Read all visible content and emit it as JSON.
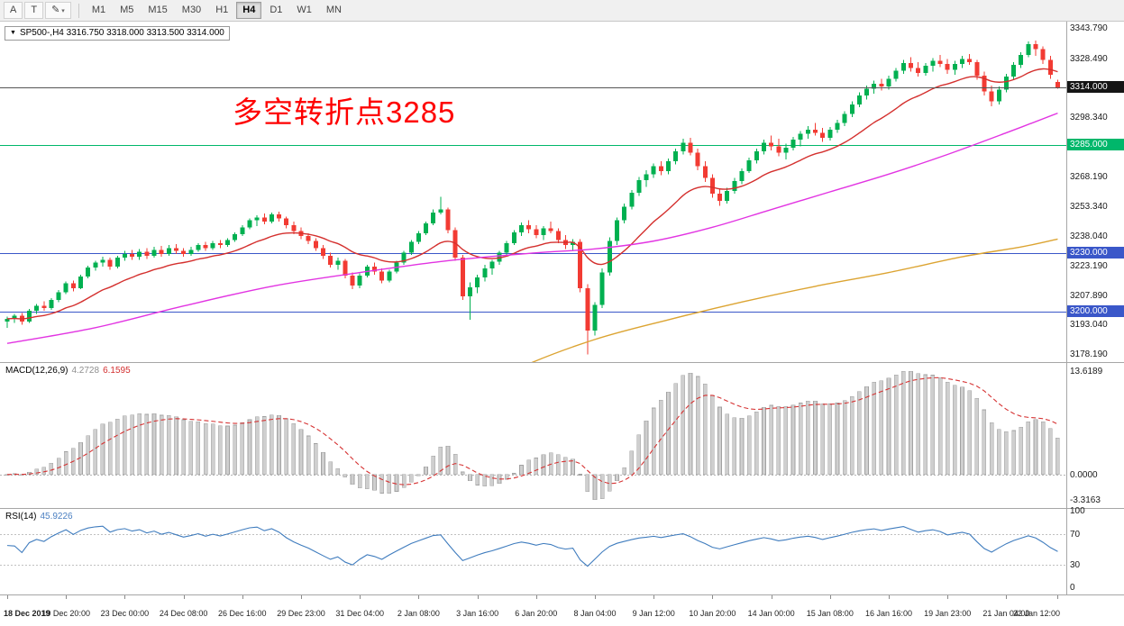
{
  "toolbar": {
    "tools": [
      {
        "name": "arrow-tool",
        "label": "A"
      },
      {
        "name": "text-tool",
        "label": "T"
      },
      {
        "name": "draw-style-tool",
        "label": "✎",
        "caret": "▾"
      }
    ],
    "timeframes": [
      {
        "label": "M1",
        "active": false
      },
      {
        "label": "M5",
        "active": false
      },
      {
        "label": "M15",
        "active": false
      },
      {
        "label": "M30",
        "active": false
      },
      {
        "label": "H1",
        "active": false
      },
      {
        "label": "H4",
        "active": true
      },
      {
        "label": "D1",
        "active": false
      },
      {
        "label": "W1",
        "active": false
      },
      {
        "label": "MN",
        "active": false
      }
    ]
  },
  "chart": {
    "collapse_icon": "▼",
    "symbol_label": "SP500-,H4",
    "ohlc_label": "3316.750 3318.000 3313.500 3314.000",
    "annotation": {
      "text": "多空转折点3285",
      "color": "#fe0000"
    },
    "current_price": {
      "price": 3314.0,
      "label": "3314.000",
      "color": "#151515"
    },
    "levels": [
      {
        "price": 3285.0,
        "label": "3285.000",
        "color": "#00b76b"
      },
      {
        "price": 3230.0,
        "label": "3230.000",
        "color": "#3a57c9"
      },
      {
        "price": 3200.0,
        "label": "3200.000",
        "color": "#3a57c9"
      }
    ],
    "price_axis": {
      "ylim": [
        3174.5,
        3347.5
      ],
      "ticks": [
        "3343.790",
        "3328.490",
        "3298.340",
        "3268.190",
        "3253.340",
        "3238.040",
        "3223.190",
        "3207.890",
        "3193.040",
        "3178.190"
      ]
    }
  },
  "chart_data": {
    "type": "candlestick",
    "symbol": "SP500-",
    "timeframe": "H4",
    "colors": {
      "up": "#00b050",
      "down": "#f23b33"
    },
    "candles": [
      [
        3195.0,
        3197.5,
        3192.0,
        3196.5
      ],
      [
        3196.5,
        3199.0,
        3194.5,
        3198.0
      ],
      [
        3198.0,
        3199.5,
        3193.5,
        3195.0
      ],
      [
        3195.0,
        3201.5,
        3194.5,
        3200.5
      ],
      [
        3200.5,
        3204.0,
        3199.0,
        3203.0
      ],
      [
        3203.0,
        3205.5,
        3200.5,
        3202.0
      ],
      [
        3202.0,
        3207.0,
        3201.0,
        3206.0
      ],
      [
        3206.0,
        3211.0,
        3205.0,
        3210.0
      ],
      [
        3210.0,
        3215.5,
        3209.0,
        3214.5
      ],
      [
        3214.5,
        3216.0,
        3210.5,
        3212.0
      ],
      [
        3212.0,
        3219.0,
        3211.5,
        3218.0
      ],
      [
        3218.0,
        3223.5,
        3217.0,
        3222.5
      ],
      [
        3222.5,
        3226.0,
        3221.0,
        3225.0
      ],
      [
        3225.0,
        3228.0,
        3223.0,
        3226.5
      ],
      [
        3226.5,
        3227.5,
        3221.5,
        3223.0
      ],
      [
        3223.0,
        3228.5,
        3222.0,
        3227.5
      ],
      [
        3227.5,
        3231.0,
        3226.0,
        3229.5
      ],
      [
        3229.5,
        3231.5,
        3226.5,
        3228.0
      ],
      [
        3228.0,
        3232.0,
        3226.5,
        3230.5
      ],
      [
        3230.5,
        3232.5,
        3227.0,
        3228.5
      ],
      [
        3228.5,
        3233.0,
        3227.5,
        3231.5
      ],
      [
        3231.5,
        3233.5,
        3228.0,
        3229.5
      ],
      [
        3229.5,
        3234.0,
        3228.5,
        3232.5
      ],
      [
        3232.5,
        3234.5,
        3229.5,
        3231.0
      ],
      [
        3231.0,
        3232.5,
        3228.0,
        3229.5
      ],
      [
        3229.5,
        3233.0,
        3228.5,
        3231.5
      ],
      [
        3231.5,
        3235.0,
        3230.5,
        3234.0
      ],
      [
        3234.0,
        3235.5,
        3231.0,
        3232.5
      ],
      [
        3232.5,
        3236.0,
        3231.5,
        3235.0
      ],
      [
        3235.0,
        3236.5,
        3232.5,
        3234.0
      ],
      [
        3234.0,
        3237.5,
        3233.0,
        3236.5
      ],
      [
        3236.5,
        3240.5,
        3235.5,
        3239.5
      ],
      [
        3239.5,
        3244.0,
        3238.5,
        3243.0
      ],
      [
        3243.0,
        3247.5,
        3242.0,
        3246.5
      ],
      [
        3246.5,
        3249.0,
        3243.5,
        3248.0
      ],
      [
        3248.0,
        3250.0,
        3244.5,
        3246.0
      ],
      [
        3246.0,
        3250.5,
        3245.0,
        3249.5
      ],
      [
        3249.5,
        3251.0,
        3246.0,
        3247.5
      ],
      [
        3247.5,
        3248.5,
        3242.5,
        3244.0
      ],
      [
        3244.0,
        3246.0,
        3239.5,
        3241.0
      ],
      [
        3241.0,
        3243.0,
        3237.0,
        3238.5
      ],
      [
        3238.5,
        3240.0,
        3234.5,
        3236.0
      ],
      [
        3236.0,
        3237.5,
        3231.0,
        3232.5
      ],
      [
        3232.5,
        3234.0,
        3227.0,
        3228.5
      ],
      [
        3228.5,
        3230.0,
        3222.5,
        3224.0
      ],
      [
        3224.0,
        3227.5,
        3221.5,
        3226.0
      ],
      [
        3226.0,
        3227.0,
        3217.0,
        3218.5
      ],
      [
        3218.5,
        3220.0,
        3211.5,
        3213.5
      ],
      [
        3213.5,
        3219.5,
        3212.0,
        3218.5
      ],
      [
        3218.5,
        3224.0,
        3217.5,
        3223.0
      ],
      [
        3223.0,
        3225.0,
        3219.0,
        3220.5
      ],
      [
        3220.5,
        3222.0,
        3214.5,
        3216.0
      ],
      [
        3216.0,
        3221.5,
        3215.0,
        3220.5
      ],
      [
        3220.5,
        3226.0,
        3219.5,
        3225.0
      ],
      [
        3225.0,
        3231.0,
        3224.0,
        3230.0
      ],
      [
        3230.0,
        3236.5,
        3229.0,
        3235.5
      ],
      [
        3235.5,
        3241.0,
        3234.5,
        3240.0
      ],
      [
        3240.0,
        3246.0,
        3239.0,
        3245.0
      ],
      [
        3245.0,
        3252.0,
        3244.0,
        3250.5
      ],
      [
        3250.5,
        3258.5,
        3249.5,
        3252.0
      ],
      [
        3252.0,
        3253.0,
        3240.0,
        3241.5
      ],
      [
        3241.5,
        3243.0,
        3226.0,
        3227.5
      ],
      [
        3227.5,
        3229.0,
        3206.0,
        3208.0
      ],
      [
        3208.0,
        3215.0,
        3196.0,
        3212.5
      ],
      [
        3212.5,
        3219.0,
        3209.5,
        3217.5
      ],
      [
        3217.5,
        3224.0,
        3215.5,
        3222.0
      ],
      [
        3222.0,
        3226.5,
        3219.0,
        3225.5
      ],
      [
        3225.5,
        3231.0,
        3224.0,
        3230.0
      ],
      [
        3230.0,
        3236.0,
        3229.0,
        3235.0
      ],
      [
        3235.0,
        3241.5,
        3234.0,
        3240.5
      ],
      [
        3240.5,
        3245.5,
        3238.5,
        3244.0
      ],
      [
        3244.0,
        3246.5,
        3240.0,
        3242.0
      ],
      [
        3242.0,
        3244.0,
        3237.5,
        3239.0
      ],
      [
        3239.0,
        3243.5,
        3236.5,
        3242.5
      ],
      [
        3242.5,
        3246.0,
        3240.0,
        3241.0
      ],
      [
        3241.0,
        3242.5,
        3235.0,
        3236.5
      ],
      [
        3236.5,
        3239.0,
        3232.0,
        3234.0
      ],
      [
        3234.0,
        3237.0,
        3231.0,
        3235.5
      ],
      [
        3235.5,
        3237.0,
        3210.0,
        3212.0
      ],
      [
        3212.0,
        3214.0,
        3178.5,
        3190.5
      ],
      [
        3190.5,
        3205.0,
        3188.0,
        3203.5
      ],
      [
        3203.5,
        3222.0,
        3202.0,
        3220.0
      ],
      [
        3220.0,
        3238.0,
        3218.5,
        3236.0
      ],
      [
        3236.0,
        3248.0,
        3234.0,
        3246.5
      ],
      [
        3246.5,
        3255.0,
        3245.0,
        3253.5
      ],
      [
        3253.5,
        3262.0,
        3252.0,
        3260.5
      ],
      [
        3260.5,
        3268.5,
        3259.0,
        3267.0
      ],
      [
        3267.0,
        3272.0,
        3263.5,
        3270.0
      ],
      [
        3270.0,
        3275.5,
        3268.0,
        3274.0
      ],
      [
        3274.0,
        3276.5,
        3269.5,
        3271.5
      ],
      [
        3271.5,
        3278.0,
        3270.0,
        3276.5
      ],
      [
        3276.5,
        3283.0,
        3275.0,
        3281.5
      ],
      [
        3281.5,
        3288.0,
        3280.0,
        3286.0
      ],
      [
        3286.0,
        3288.5,
        3279.5,
        3281.0
      ],
      [
        3281.0,
        3283.0,
        3272.0,
        3274.0
      ],
      [
        3274.0,
        3276.5,
        3266.0,
        3268.0
      ],
      [
        3268.0,
        3270.0,
        3258.0,
        3260.0
      ],
      [
        3260.0,
        3262.5,
        3254.0,
        3256.5
      ],
      [
        3256.5,
        3263.0,
        3255.0,
        3261.5
      ],
      [
        3261.5,
        3268.0,
        3260.0,
        3266.5
      ],
      [
        3266.5,
        3273.0,
        3265.0,
        3271.5
      ],
      [
        3271.5,
        3278.5,
        3270.5,
        3277.0
      ],
      [
        3277.0,
        3283.0,
        3275.5,
        3281.5
      ],
      [
        3281.5,
        3287.5,
        3280.0,
        3286.0
      ],
      [
        3286.0,
        3289.5,
        3282.0,
        3284.0
      ],
      [
        3284.0,
        3288.0,
        3279.0,
        3281.0
      ],
      [
        3281.0,
        3285.5,
        3277.5,
        3283.5
      ],
      [
        3283.5,
        3289.0,
        3282.0,
        3287.5
      ],
      [
        3287.5,
        3292.0,
        3284.0,
        3290.5
      ],
      [
        3290.5,
        3294.5,
        3288.0,
        3292.5
      ],
      [
        3292.5,
        3296.0,
        3289.5,
        3291.0
      ],
      [
        3291.0,
        3293.5,
        3286.5,
        3288.5
      ],
      [
        3288.5,
        3294.0,
        3287.0,
        3292.5
      ],
      [
        3292.5,
        3297.5,
        3291.0,
        3296.0
      ],
      [
        3296.0,
        3302.0,
        3294.5,
        3300.5
      ],
      [
        3300.5,
        3307.0,
        3299.0,
        3305.5
      ],
      [
        3305.5,
        3311.5,
        3304.0,
        3310.0
      ],
      [
        3310.0,
        3315.0,
        3308.0,
        3313.5
      ],
      [
        3313.5,
        3317.5,
        3311.0,
        3316.0
      ],
      [
        3316.0,
        3318.5,
        3312.5,
        3314.5
      ],
      [
        3314.5,
        3320.0,
        3313.0,
        3318.5
      ],
      [
        3318.5,
        3324.0,
        3317.0,
        3322.5
      ],
      [
        3322.5,
        3328.0,
        3321.0,
        3326.5
      ],
      [
        3326.5,
        3329.5,
        3322.0,
        3324.0
      ],
      [
        3324.0,
        3327.0,
        3319.5,
        3321.5
      ],
      [
        3321.5,
        3326.5,
        3320.0,
        3325.0
      ],
      [
        3325.0,
        3329.0,
        3322.0,
        3327.5
      ],
      [
        3327.5,
        3330.5,
        3324.5,
        3326.0
      ],
      [
        3326.0,
        3328.5,
        3321.0,
        3323.0
      ],
      [
        3323.0,
        3327.5,
        3320.5,
        3326.0
      ],
      [
        3326.0,
        3330.0,
        3324.0,
        3328.5
      ],
      [
        3328.5,
        3331.0,
        3325.5,
        3327.0
      ],
      [
        3327.0,
        3328.0,
        3318.0,
        3320.0
      ],
      [
        3320.0,
        3322.0,
        3310.0,
        3312.0
      ],
      [
        3312.0,
        3315.0,
        3304.5,
        3307.0
      ],
      [
        3307.0,
        3314.5,
        3305.5,
        3313.0
      ],
      [
        3313.0,
        3321.0,
        3311.5,
        3319.5
      ],
      [
        3319.5,
        3327.0,
        3318.0,
        3325.5
      ],
      [
        3325.5,
        3332.0,
        3324.0,
        3330.5
      ],
      [
        3330.5,
        3337.5,
        3329.5,
        3336.0
      ],
      [
        3336.0,
        3337.8,
        3330.0,
        3333.5
      ],
      [
        3333.5,
        3335.0,
        3326.0,
        3328.0
      ],
      [
        3328.0,
        3330.0,
        3318.5,
        3320.5
      ],
      [
        3316.75,
        3318.0,
        3313.5,
        3314.0
      ]
    ],
    "overlays": [
      {
        "name": "ma-fast-red",
        "color": "#d4302e",
        "type": "ema",
        "period": 16
      },
      {
        "name": "ma-mid-magenta",
        "color": "#e234e2",
        "type": "points",
        "points": [
          [
            0,
            3184
          ],
          [
            12,
            3192
          ],
          [
            24,
            3203
          ],
          [
            36,
            3213
          ],
          [
            48,
            3220
          ],
          [
            60,
            3226
          ],
          [
            72,
            3230
          ],
          [
            80,
            3232
          ],
          [
            88,
            3236
          ],
          [
            96,
            3243
          ],
          [
            104,
            3252
          ],
          [
            112,
            3261
          ],
          [
            120,
            3270
          ],
          [
            128,
            3280
          ],
          [
            136,
            3291
          ],
          [
            143,
            3301
          ]
        ]
      },
      {
        "name": "ma-slow-orange",
        "color": "#dca432",
        "type": "points",
        "points": [
          [
            58,
            3150
          ],
          [
            70,
            3172
          ],
          [
            80,
            3186
          ],
          [
            90,
            3196
          ],
          [
            100,
            3205
          ],
          [
            110,
            3213
          ],
          [
            120,
            3220
          ],
          [
            130,
            3228
          ],
          [
            138,
            3233
          ],
          [
            143,
            3237
          ]
        ]
      }
    ],
    "indicators": [
      {
        "name": "MACD",
        "label": "MACD(12,26,9)",
        "main_value": "4.2728",
        "signal_value": "6.1595",
        "histogram_color": "#cfcfcf",
        "signal_color": "#d63333",
        "axis_labels": [
          "13.6189",
          "0.0000",
          "-3.3163"
        ]
      },
      {
        "name": "RSI",
        "label": "RSI(14)",
        "value": "45.9226",
        "line_color": "#3f7cbe",
        "levels": [
          70,
          30
        ],
        "axis_labels": [
          "100",
          "70",
          "30",
          "0"
        ]
      }
    ],
    "time_labels": [
      "18 Dec 2019",
      "19 Dec 20:00",
      "23 Dec 00:00",
      "24 Dec 08:00",
      "26 Dec 16:00",
      "29 Dec 23:00",
      "31 Dec 04:00",
      "2 Jan 08:00",
      "3 Jan 16:00",
      "6 Jan 20:00",
      "8 Jan 04:00",
      "9 Jan 12:00",
      "10 Jan 20:00",
      "14 Jan 00:00",
      "15 Jan 08:00",
      "16 Jan 16:00",
      "19 Jan 23:00",
      "21 Jan 04:00",
      "22 Jan 12:00"
    ]
  }
}
